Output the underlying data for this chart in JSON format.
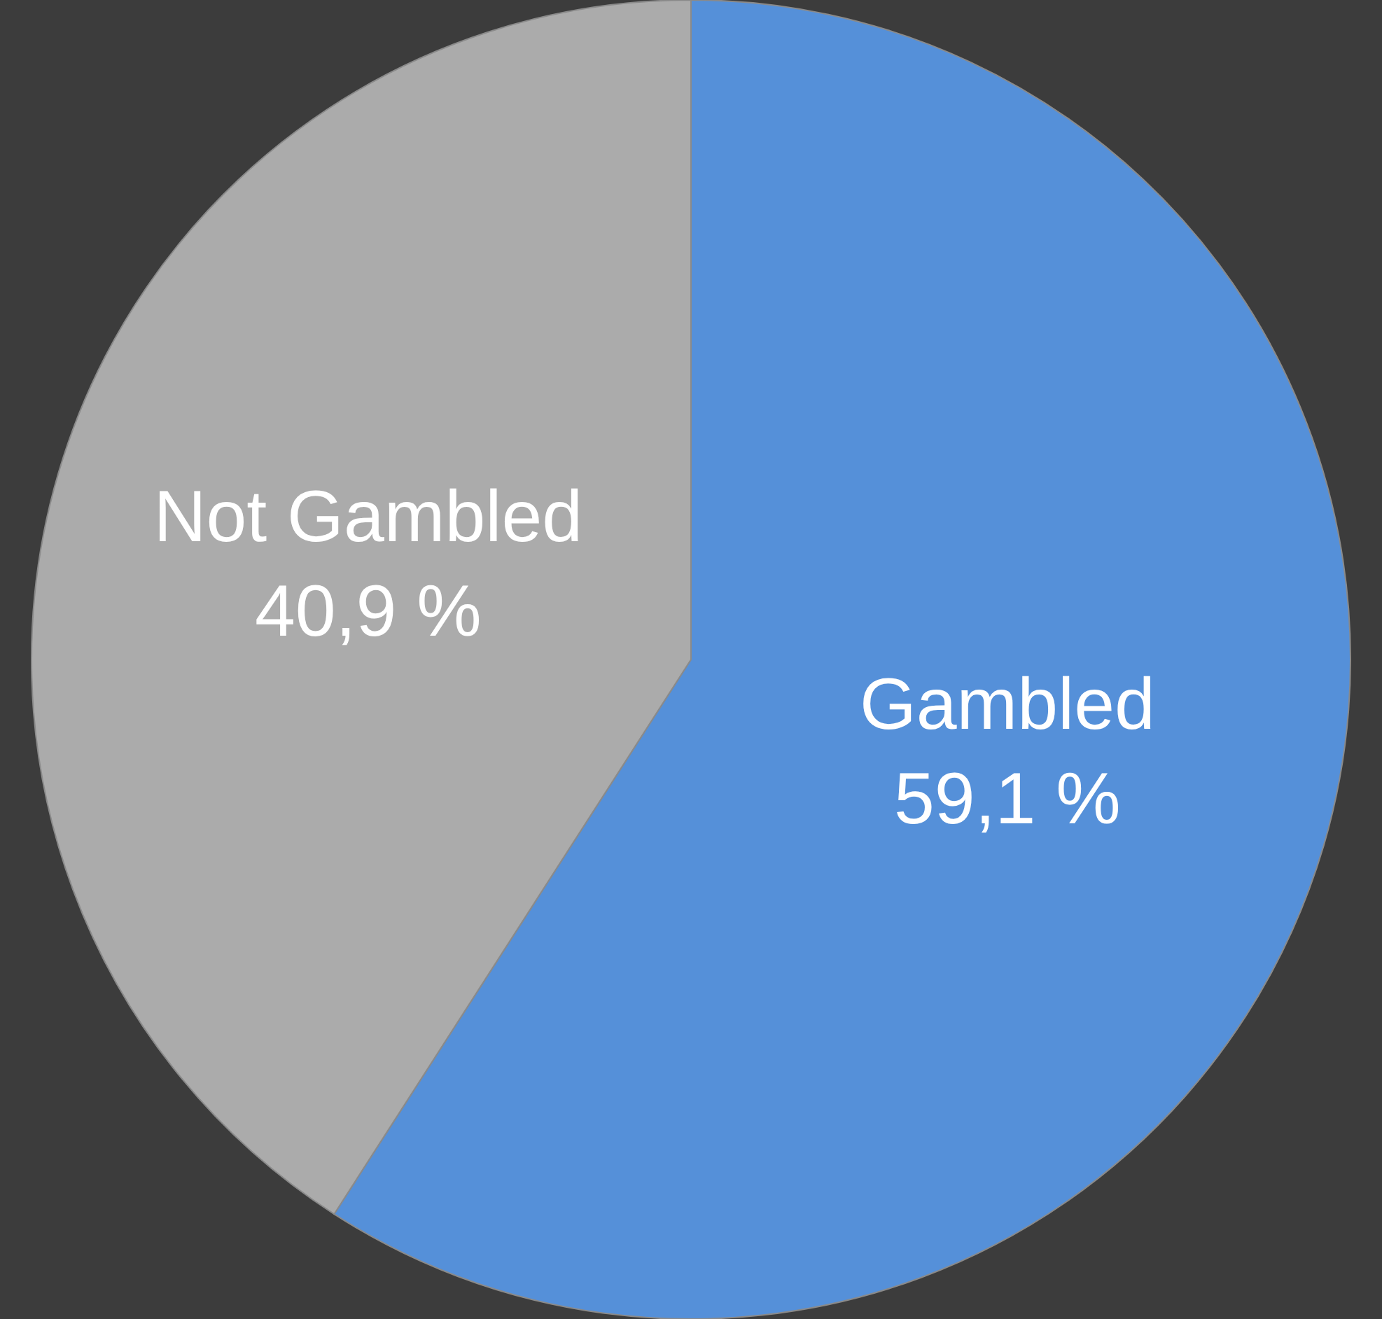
{
  "chart_data": {
    "type": "pie",
    "categories": [
      "Gambled",
      "Not Gambled"
    ],
    "values": [
      59.1,
      40.9
    ],
    "colors": [
      "#5590d9",
      "#ababab"
    ],
    "value_labels": [
      "59,1 %",
      "40,9 %"
    ]
  }
}
